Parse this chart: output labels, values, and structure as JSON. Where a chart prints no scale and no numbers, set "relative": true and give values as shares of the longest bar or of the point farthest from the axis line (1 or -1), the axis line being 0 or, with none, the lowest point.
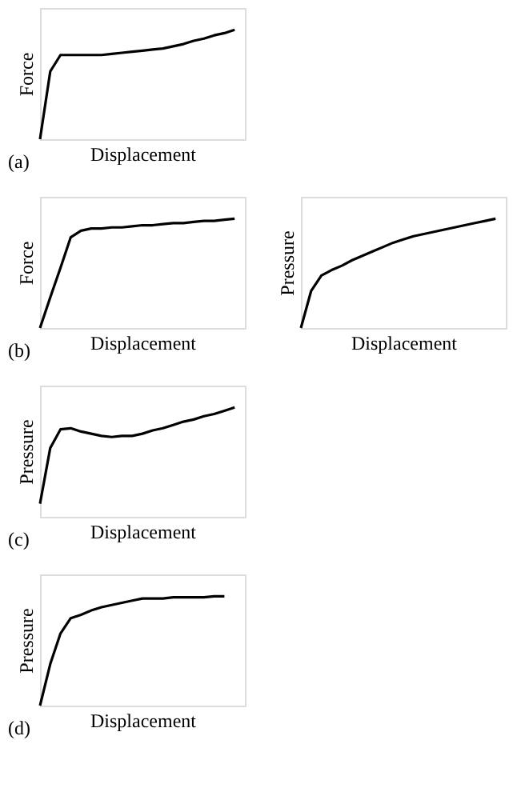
{
  "chart_data": [
    {
      "type": "line",
      "relative": true,
      "xlabel": "Displacement",
      "ylabel": "Force",
      "annotations": [
        "(a)"
      ],
      "tick_labels": false,
      "grid": false,
      "categories": [
        null,
        null,
        null,
        null,
        null,
        null,
        null,
        null,
        null,
        null,
        null,
        null,
        null,
        null,
        null,
        null,
        null,
        null,
        null,
        null,
        null
      ],
      "series": [
        {
          "color": "#000000",
          "values": [
            0,
            0.62,
            0.77,
            0.77,
            0.77,
            0.77,
            0.77,
            0.78,
            0.79,
            0.8,
            0.81,
            0.82,
            0.83,
            0.85,
            0.87,
            0.9,
            0.92,
            0.95,
            0.97,
            1,
            null
          ]
        }
      ]
    },
    {
      "type": "line",
      "relative": true,
      "xlabel": "Displacement",
      "ylabel": "Force",
      "annotations": [
        "(b)"
      ],
      "tick_labels": false,
      "grid": false,
      "categories": [
        null,
        null,
        null,
        null,
        null,
        null,
        null,
        null,
        null,
        null,
        null,
        null,
        null,
        null,
        null,
        null,
        null,
        null,
        null,
        null,
        null
      ],
      "series": [
        {
          "color": "#000000",
          "values": [
            0,
            0.28,
            0.55,
            0.83,
            0.89,
            0.91,
            0.91,
            0.92,
            0.92,
            0.93,
            0.94,
            0.94,
            0.95,
            0.96,
            0.96,
            0.97,
            0.98,
            0.98,
            0.99,
            1,
            null
          ]
        }
      ]
    },
    {
      "type": "line",
      "relative": true,
      "xlabel": "Displacement",
      "ylabel": "Pressure",
      "tick_labels": false,
      "grid": false,
      "categories": [
        null,
        null,
        null,
        null,
        null,
        null,
        null,
        null,
        null,
        null,
        null,
        null,
        null,
        null,
        null,
        null,
        null,
        null,
        null,
        null,
        null
      ],
      "series": [
        {
          "color": "#000000",
          "values": [
            0,
            0.34,
            0.48,
            0.53,
            0.57,
            0.62,
            0.66,
            0.7,
            0.74,
            0.78,
            0.81,
            0.84,
            0.86,
            0.88,
            0.9,
            0.92,
            0.94,
            0.96,
            0.98,
            1,
            null
          ]
        }
      ]
    },
    {
      "type": "line",
      "relative": true,
      "xlabel": "Displacement",
      "ylabel": "Pressure",
      "annotations": [
        "(c)"
      ],
      "tick_labels": false,
      "grid": false,
      "categories": [
        null,
        null,
        null,
        null,
        null,
        null,
        null,
        null,
        null,
        null,
        null,
        null,
        null,
        null,
        null,
        null,
        null,
        null,
        null,
        null,
        null
      ],
      "series": [
        {
          "color": "#000000",
          "values": [
            0.12,
            0.63,
            0.8,
            0.81,
            0.78,
            0.76,
            0.74,
            0.73,
            0.74,
            0.74,
            0.76,
            0.79,
            0.81,
            0.84,
            0.87,
            0.89,
            0.92,
            0.94,
            0.97,
            1,
            null
          ]
        }
      ]
    },
    {
      "type": "line",
      "relative": true,
      "xlabel": "Displacement",
      "ylabel": "Pressure",
      "annotations": [
        "(d)"
      ],
      "tick_labels": false,
      "grid": false,
      "categories": [
        null,
        null,
        null,
        null,
        null,
        null,
        null,
        null,
        null,
        null,
        null,
        null,
        null,
        null,
        null,
        null,
        null,
        null,
        null,
        null,
        null
      ],
      "series": [
        {
          "color": "#000000",
          "values": [
            0,
            0.38,
            0.66,
            0.8,
            0.83,
            0.87,
            0.9,
            0.92,
            0.94,
            0.96,
            0.98,
            0.98,
            0.98,
            0.99,
            0.99,
            0.99,
            0.99,
            1,
            1,
            null,
            null
          ]
        }
      ]
    }
  ]
}
